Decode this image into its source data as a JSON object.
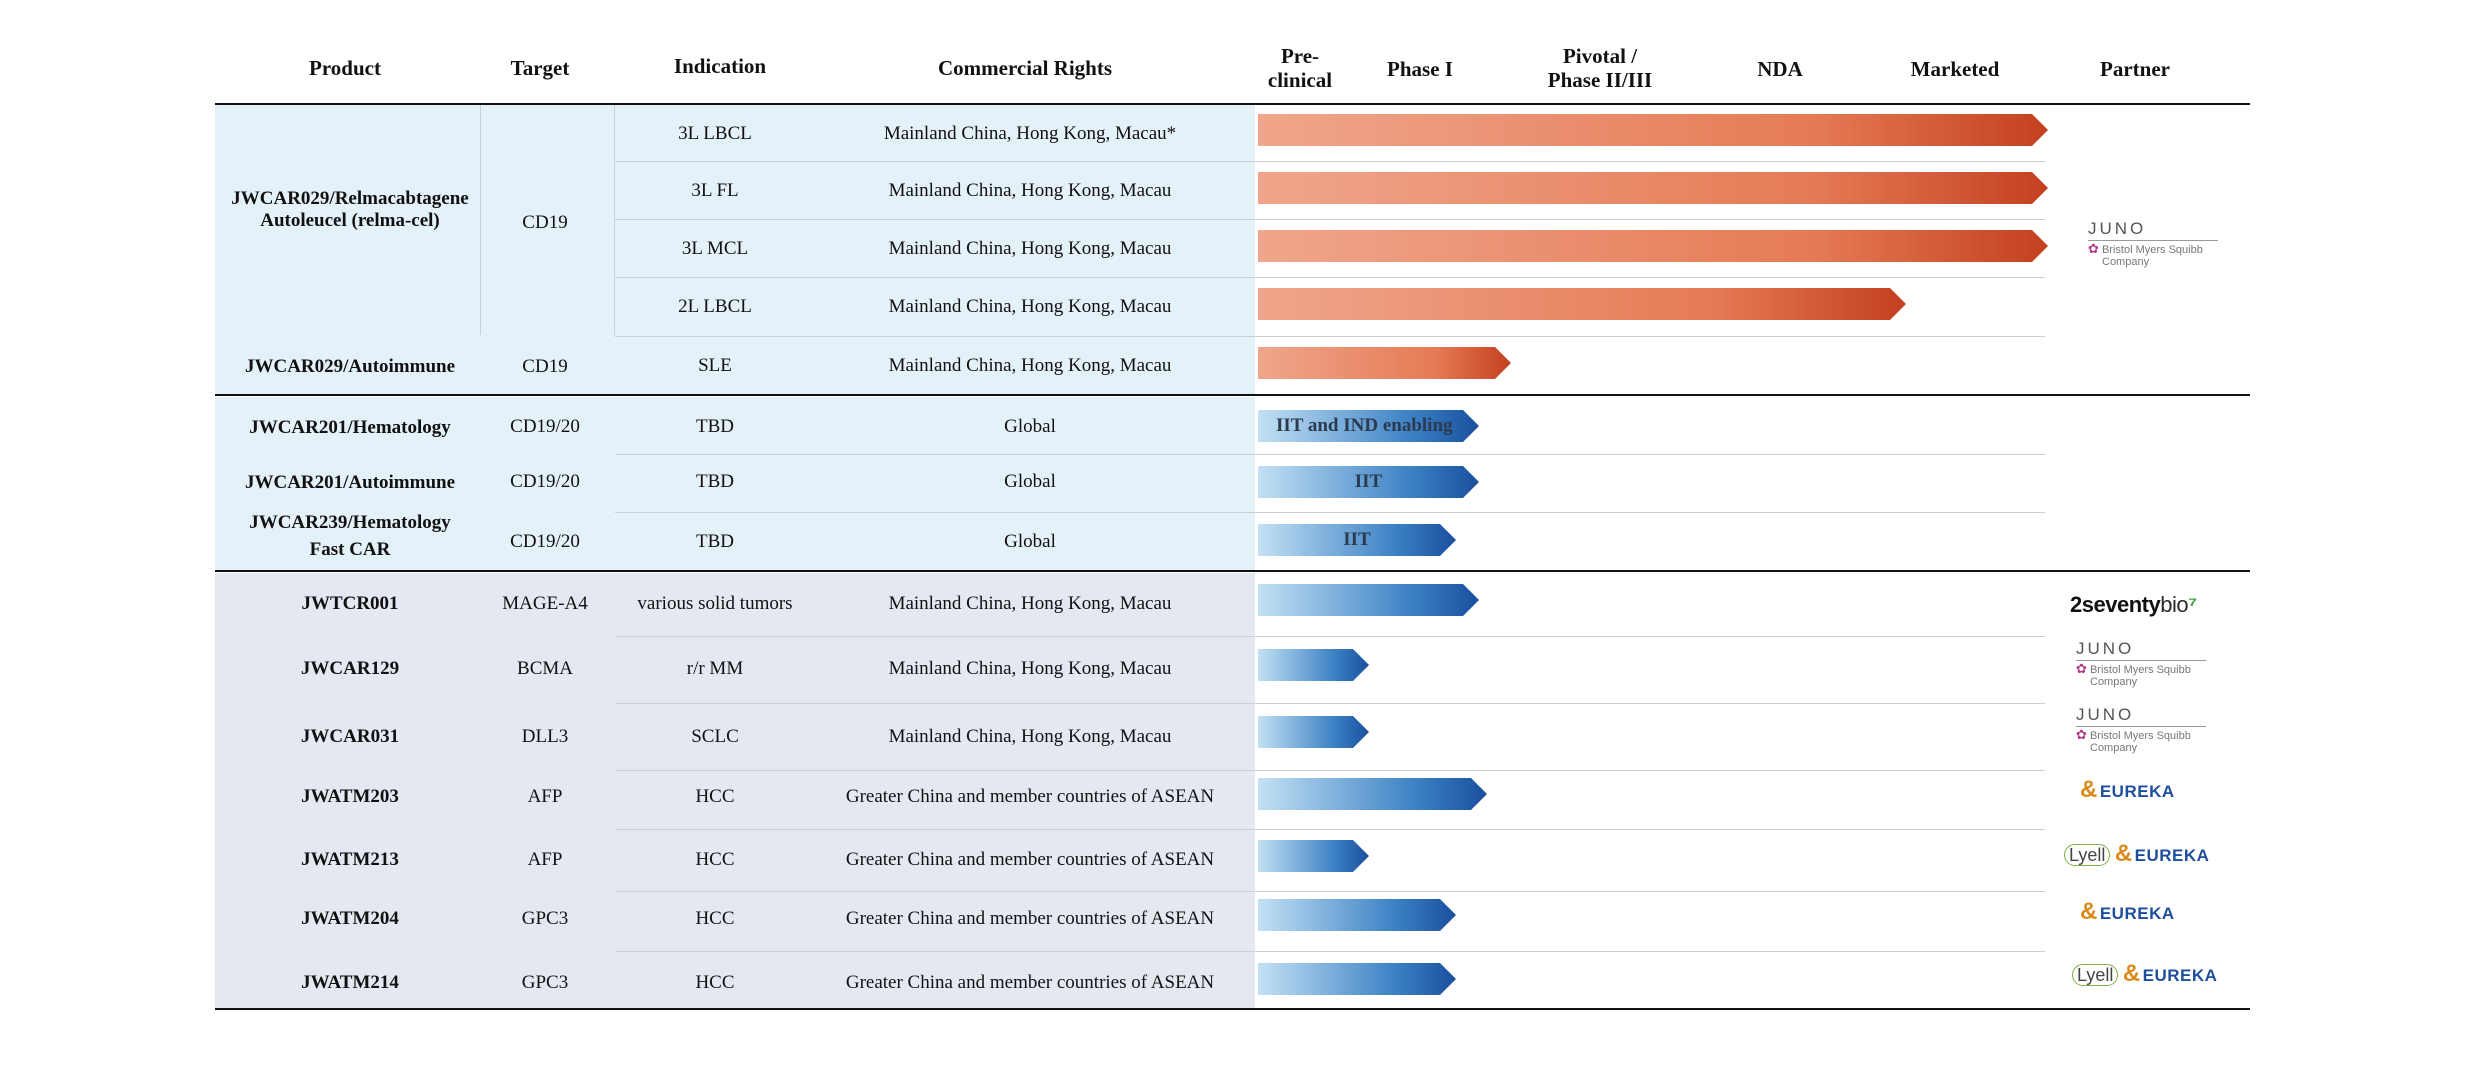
{
  "headers": {
    "product": "Product",
    "target": "Target",
    "indication": "Indication",
    "rights": "Commercial Rights",
    "preclinical_1": "Pre-",
    "preclinical_2": "clinical",
    "phase1": "Phase I",
    "pivotal_1": "Pivotal /",
    "pivotal_2": "Phase II/III",
    "nda": "NDA",
    "marketed": "Marketed",
    "partner": "Partner"
  },
  "section1": {
    "product_line1": "JWCAR029/Relmacabtagene",
    "product_line2": "Autoleucel (relma-cel)",
    "target": "CD19",
    "rows": [
      {
        "indication": "3L LBCL",
        "rights": "Mainland China, Hong Kong, Macau*",
        "stage": 1.0
      },
      {
        "indication": "3L FL",
        "rights": "Mainland China, Hong Kong, Macau",
        "stage": 1.0
      },
      {
        "indication": "3L MCL",
        "rights": "Mainland China, Hong Kong, Macau",
        "stage": 1.0
      },
      {
        "indication": "2L LBCL",
        "rights": "Mainland China, Hong Kong, Macau",
        "stage": 0.82
      }
    ],
    "auto_row": {
      "product": "JWCAR029/Autoimmune",
      "target": "CD19",
      "indication": "SLE",
      "rights": "Mainland China, Hong Kong, Macau",
      "stage": 0.32
    }
  },
  "section2": {
    "rows": [
      {
        "product": "JWCAR201/Hematology",
        "product2": "",
        "target": "CD19/20",
        "indication": "TBD",
        "rights": "Global",
        "bar_label": "IIT and IND enabling",
        "stage": 0.28
      },
      {
        "product": "JWCAR201/Autoimmune",
        "product2": "",
        "target": "CD19/20",
        "indication": "TBD",
        "rights": "Global",
        "bar_label": "IIT",
        "stage": 0.28
      },
      {
        "product": "JWCAR239/Hematology",
        "product2": "Fast CAR",
        "target": "CD19/20",
        "indication": "TBD",
        "rights": "Global",
        "bar_label": "IIT",
        "stage": 0.25
      }
    ]
  },
  "section3": {
    "rows": [
      {
        "product": "JWTCR001",
        "target": "MAGE-A4",
        "indication": "various solid tumors",
        "rights": "Mainland China, Hong Kong, Macau",
        "stage": 0.28
      },
      {
        "product": "JWCAR129",
        "target": "BCMA",
        "indication": "r/r MM",
        "rights": "Mainland China, Hong Kong, Macau",
        "stage": 0.14
      },
      {
        "product": "JWCAR031",
        "target": "DLL3",
        "indication": "SCLC",
        "rights": "Mainland China, Hong Kong, Macau",
        "stage": 0.14
      },
      {
        "product": "JWATM203",
        "target": "AFP",
        "indication": "HCC",
        "rights": "Greater China and member countries of ASEAN",
        "stage": 0.29
      },
      {
        "product": "JWATM213",
        "target": "AFP",
        "indication": "HCC",
        "rights": "Greater China and member countries of ASEAN",
        "stage": 0.14
      },
      {
        "product": "JWATM204",
        "target": "GPC3",
        "indication": "HCC",
        "rights": "Greater China and member countries of ASEAN",
        "stage": 0.25
      },
      {
        "product": "JWATM214",
        "target": "GPC3",
        "indication": "HCC",
        "rights": "Greater China and member countries of ASEAN",
        "stage": 0.25
      }
    ]
  },
  "partners": {
    "juno": "JUNO",
    "bms_line1": "Bristol Myers Squibb",
    "bms_line2": "Company",
    "bluebird_a": "2",
    "bluebird_b": "seventy",
    "bluebird_c": "bio",
    "eureka": "EUREKA",
    "eureka_amp": "&",
    "lyell": "Lyell"
  },
  "colors": {
    "light_band": "#e4f1f8",
    "gray_band": "#e4e8f1",
    "orange_start": "#f0a68c",
    "orange_end": "#c4401f",
    "blue_start": "#c3e1f4",
    "blue_end": "#1a4f9e"
  }
}
